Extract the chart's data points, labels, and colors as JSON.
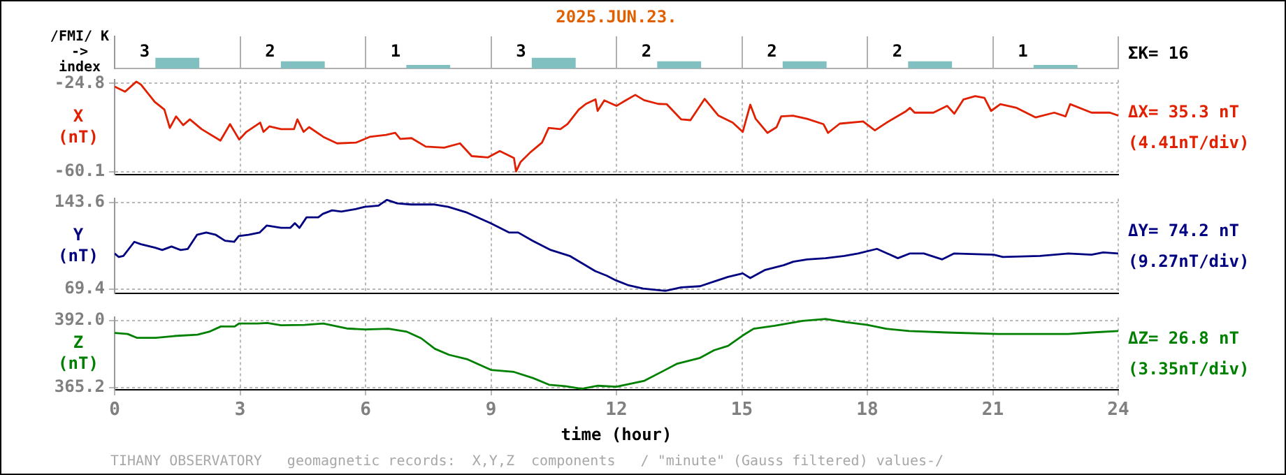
{
  "chart_data": [
    {
      "type": "bar",
      "title": "2025.JUN.23.",
      "ylabel": "/FMI/ K -> index",
      "categories": [
        null,
        null,
        null,
        null,
        null,
        null,
        null,
        null
      ],
      "values": [
        3,
        2,
        1,
        3,
        2,
        2,
        2,
        1
      ],
      "color": "#80c0c0",
      "ylim": [
        0,
        9
      ],
      "data_labels": true,
      "grid": "x",
      "tick_labels": false,
      "annotations": [
        "ΣK= 16"
      ]
    },
    {
      "type": "line",
      "ylabel": "X (nT)",
      "xlim": [
        0,
        24
      ],
      "xticks": [
        0,
        3,
        6,
        9,
        12,
        15,
        18,
        21,
        24
      ],
      "ylim": [
        -61.2,
        -23.4
      ],
      "yticks": [
        -24.8,
        -60.1
      ],
      "tick_labels": "y",
      "grid": true,
      "marker": "none",
      "annotations": [
        "ΔX= 35.3 nT",
        "(4.41nT/div)"
      ],
      "x": [
        0,
        0.25,
        0.52,
        0.63,
        0.96,
        1.19,
        1.32,
        1.47,
        1.64,
        1.8,
        2.08,
        2.53,
        2.76,
        2.98,
        3.15,
        3.48,
        3.56,
        3.7,
        3.98,
        4.29,
        4.37,
        4.52,
        4.65,
        4.99,
        5.32,
        5.77,
        6.1,
        6.49,
        6.71,
        6.83,
        7.1,
        7.44,
        7.88,
        8.26,
        8.54,
        8.93,
        9.21,
        9.55,
        9.6,
        9.71,
        9.94,
        10.22,
        10.38,
        10.66,
        10.83,
        11.1,
        11.27,
        11.5,
        11.55,
        11.71,
        12.0,
        12.22,
        12.45,
        12.66,
        13.0,
        13.2,
        13.55,
        13.77,
        14.11,
        14.44,
        14.78,
        15.02,
        15.2,
        15.33,
        15.61,
        15.83,
        15.94,
        16.22,
        16.56,
        16.95,
        17.06,
        17.34,
        17.9,
        18.18,
        18.46,
        18.91,
        19.02,
        19.13,
        19.58,
        19.91,
        20.08,
        20.3,
        20.58,
        20.8,
        20.96,
        21.18,
        21.57,
        22.02,
        22.47,
        22.74,
        22.85,
        23.36,
        23.8,
        24
      ],
      "series": [
        {
          "color": "#e02000",
          "values": [
            -26.1,
            -28.1,
            -24.1,
            -25.3,
            -32.2,
            -35.3,
            -42.6,
            -38.0,
            -41.5,
            -39.2,
            -43.1,
            -47.7,
            -41.1,
            -47.3,
            -44.2,
            -40.5,
            -44.2,
            -42.0,
            -43.1,
            -43.1,
            -39.2,
            -44.2,
            -42.3,
            -46.2,
            -48.8,
            -48.5,
            -46.2,
            -45.4,
            -44.6,
            -47.0,
            -46.7,
            -50.1,
            -50.5,
            -48.8,
            -53.9,
            -54.4,
            -51.9,
            -54.7,
            -60.0,
            -56.2,
            -52.4,
            -48.5,
            -42.6,
            -43.1,
            -41.1,
            -35.3,
            -33.0,
            -31.2,
            -35.8,
            -31.6,
            -33.8,
            -31.6,
            -29.4,
            -31.5,
            -33.0,
            -33.1,
            -39.2,
            -39.5,
            -31.0,
            -37.7,
            -40.5,
            -44.2,
            -33.3,
            -39.0,
            -44.6,
            -42.3,
            -38.0,
            -37.7,
            -39.0,
            -41.1,
            -44.6,
            -40.9,
            -40.0,
            -43.6,
            -40.5,
            -36.1,
            -34.6,
            -36.5,
            -36.5,
            -33.8,
            -36.9,
            -31.2,
            -29.9,
            -30.6,
            -35.8,
            -33.1,
            -34.6,
            -38.4,
            -36.5,
            -38.0,
            -33.1,
            -36.5,
            -36.5,
            -37.7
          ]
        }
      ]
    },
    {
      "type": "line",
      "ylabel": "Y (nT)",
      "xlim": [
        0,
        24
      ],
      "xticks": [
        0,
        3,
        6,
        9,
        12,
        15,
        18,
        21,
        24
      ],
      "ylim": [
        66.1,
        147
      ],
      "yticks": [
        143.6,
        69.4
      ],
      "tick_labels": "y",
      "grid": true,
      "marker": "none",
      "annotations": [
        "ΔY= 74.2 nT",
        "(9.27nT/div)"
      ],
      "x": [
        0,
        0.1,
        0.21,
        0.47,
        0.63,
        0.97,
        1.14,
        1.36,
        1.58,
        1.75,
        1.97,
        2.19,
        2.42,
        2.64,
        2.86,
        2.97,
        3.2,
        3.47,
        3.64,
        3.98,
        4.2,
        4.31,
        4.42,
        4.59,
        4.87,
        4.98,
        5.2,
        5.42,
        5.76,
        5.98,
        6.31,
        6.51,
        6.76,
        7.09,
        7.65,
        7.98,
        8.43,
        8.99,
        9.43,
        9.65,
        9.99,
        10.43,
        10.88,
        11.21,
        11.49,
        11.77,
        11.99,
        12.27,
        12.64,
        13.17,
        13.55,
        14.0,
        14.33,
        14.67,
        15.02,
        15.2,
        15.56,
        16.0,
        16.23,
        16.56,
        17.0,
        17.45,
        17.78,
        18.23,
        18.73,
        19.01,
        19.35,
        19.79,
        20.07,
        21.02,
        21.24,
        22.13,
        22.8,
        23.36,
        23.64,
        24
      ],
      "series": [
        {
          "color": "#000080",
          "values": [
            100,
            97,
            98,
            110,
            108,
            105,
            103,
            106,
            103,
            104,
            116,
            118,
            116,
            111,
            110,
            115,
            116,
            118,
            124,
            122,
            122,
            126,
            122,
            131,
            131,
            134,
            137,
            136,
            138,
            140,
            141,
            146,
            143,
            142,
            142,
            140,
            135,
            126,
            118,
            118,
            111,
            103,
            98,
            91,
            85,
            81,
            77,
            73,
            70,
            68,
            71,
            72,
            76,
            80,
            83,
            79,
            86,
            90,
            93,
            95,
            96,
            98,
            100,
            104,
            96,
            100,
            100,
            95,
            100,
            99,
            97,
            98,
            100,
            99,
            101,
            100
          ]
        }
      ]
    },
    {
      "type": "line",
      "ylabel": "Z (nT)",
      "xlabel": "time (hour)",
      "xlim": [
        0,
        24
      ],
      "xticks": [
        0,
        3,
        6,
        9,
        12,
        15,
        18,
        21,
        24
      ],
      "ylim": [
        364.4,
        393.2
      ],
      "yticks": [
        {
          "value": 392,
          "label": "392.0"
        },
        365.2
      ],
      "grid": true,
      "marker": "none",
      "annotations": [
        "ΔZ= 26.8 nT",
        "(3.35nT/div)",
        "TIHANY OBSERVATORY   geomagnetic records:  X,Y,Z  components   / \"minute\" (Gauss filtered) values-/"
      ],
      "x": [
        0,
        0.31,
        0.53,
        0.98,
        1.43,
        1.98,
        2.26,
        2.54,
        2.87,
        2.98,
        3.43,
        3.65,
        3.98,
        4.54,
        4.99,
        5.55,
        5.99,
        6.55,
        6.99,
        7.33,
        7.66,
        8.0,
        8.44,
        9.0,
        9.55,
        10.0,
        10.39,
        10.78,
        11.17,
        11.56,
        12.0,
        12.67,
        13.11,
        13.44,
        14.0,
        14.33,
        14.67,
        15.02,
        15.28,
        15.78,
        16.45,
        17.0,
        17.45,
        18.0,
        18.45,
        19.0,
        19.9,
        21.13,
        21.91,
        22.8,
        23.36,
        24
      ],
      "series": [
        {
          "color": "#008000",
          "values": [
            387.0,
            386.6,
            385.1,
            385.1,
            385.8,
            386.3,
            387.5,
            389.6,
            389.6,
            390.8,
            390.8,
            391.0,
            390.1,
            390.2,
            390.8,
            388.8,
            388.4,
            388.7,
            387.5,
            384.9,
            380.7,
            378.3,
            376.5,
            372.3,
            371.5,
            369.1,
            366.4,
            365.8,
            364.8,
            366.0,
            365.6,
            368.0,
            371.8,
            374.7,
            377.1,
            380.1,
            381.9,
            386.0,
            388.7,
            389.9,
            391.8,
            392.6,
            391.4,
            390.2,
            388.7,
            387.8,
            387.2,
            386.6,
            386.6,
            386.6,
            387.2,
            387.8
          ]
        }
      ]
    }
  ]
}
